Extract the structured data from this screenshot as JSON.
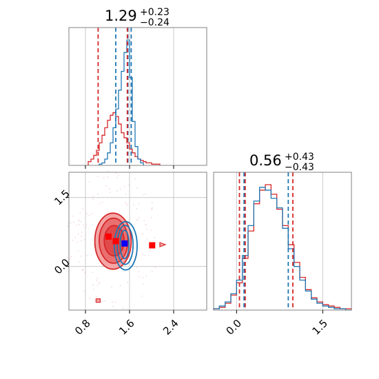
{
  "chart_data": {
    "type": "corner",
    "params": [
      {
        "median": 1.29,
        "plus": "+0.23",
        "minus": "−0.24",
        "title_main": "1.29"
      },
      {
        "median": 0.56,
        "plus": "+0.43",
        "minus": "−0.43",
        "title_main": "0.56"
      }
    ],
    "colors": {
      "blue": "#1f77b4",
      "red": "#d62728",
      "red_fill_outer": "#f4a6a6",
      "red_fill_inner": "#e04a4a"
    },
    "panel_0": {
      "xlim": [
        0.5,
        3.0
      ],
      "xticks": [
        0.8,
        1.6,
        2.4
      ],
      "xtick_labels": [
        "0.8",
        "1.6",
        "2.4"
      ],
      "quantiles_blue": [
        1.35,
        1.57,
        1.63
      ],
      "quantiles_red": [
        1.03,
        1.56
      ],
      "hist_blue": {
        "edges": [
          1.05,
          1.1,
          1.15,
          1.2,
          1.25,
          1.3,
          1.35,
          1.4,
          1.45,
          1.5,
          1.55,
          1.6,
          1.65,
          1.7,
          1.75,
          1.8,
          1.85
        ],
        "counts": [
          0.01,
          0.02,
          0.05,
          0.1,
          0.18,
          0.3,
          0.45,
          0.6,
          0.75,
          0.9,
          1.0,
          0.7,
          0.35,
          0.15,
          0.05,
          0.02
        ]
      },
      "hist_red": {
        "edges": [
          0.85,
          0.9,
          0.95,
          1.0,
          1.05,
          1.1,
          1.15,
          1.2,
          1.25,
          1.3,
          1.35,
          1.4,
          1.45,
          1.5,
          1.55,
          1.6,
          1.65,
          1.7,
          1.75,
          1.8,
          1.85,
          1.9,
          1.95,
          2.0,
          2.05,
          2.1,
          2.15
        ],
        "counts": [
          0.03,
          0.05,
          0.08,
          0.12,
          0.18,
          0.24,
          0.3,
          0.36,
          0.4,
          0.42,
          0.39,
          0.33,
          0.26,
          0.22,
          0.18,
          0.13,
          0.1,
          0.07,
          0.05,
          0.04,
          0.03,
          0.02,
          0.02,
          0.01,
          0.01,
          0.01
        ]
      }
    },
    "panel_1": {
      "xlim": [
        -0.4,
        2.0
      ],
      "xticks": [
        0.0,
        1.5
      ],
      "xtick_labels": [
        "0.0",
        "1.5"
      ],
      "quantiles_blue": [
        0.13,
        0.9
      ],
      "quantiles_red": [
        0.05,
        0.15,
        0.98
      ],
      "hist_blue": {
        "edges": [
          -0.4,
          -0.3,
          -0.2,
          -0.1,
          0.0,
          0.1,
          0.2,
          0.3,
          0.4,
          0.5,
          0.6,
          0.7,
          0.8,
          0.9,
          1.0,
          1.1,
          1.2,
          1.3,
          1.4,
          1.5,
          1.6,
          1.7,
          1.8,
          1.9,
          2.0
        ],
        "counts": [
          0.01,
          0.03,
          0.06,
          0.12,
          0.22,
          0.4,
          0.62,
          0.8,
          0.9,
          0.88,
          0.82,
          0.75,
          0.6,
          0.45,
          0.32,
          0.22,
          0.14,
          0.08,
          0.05,
          0.03,
          0.02,
          0.01,
          0.01,
          0.0
        ]
      },
      "hist_red": {
        "edges": [
          -0.4,
          -0.3,
          -0.2,
          -0.1,
          0.0,
          0.1,
          0.2,
          0.3,
          0.4,
          0.5,
          0.6,
          0.7,
          0.8,
          0.9,
          1.0,
          1.1,
          1.2,
          1.3,
          1.4,
          1.5,
          1.6,
          1.7,
          1.8,
          1.9,
          2.0
        ],
        "counts": [
          0.01,
          0.02,
          0.05,
          0.11,
          0.2,
          0.38,
          0.58,
          0.78,
          0.88,
          0.92,
          0.85,
          0.74,
          0.62,
          0.48,
          0.35,
          0.24,
          0.15,
          0.09,
          0.06,
          0.04,
          0.03,
          0.02,
          0.01,
          0.01
        ]
      }
    },
    "panel_2d": {
      "xlim": [
        0.5,
        3.0
      ],
      "ylim": [
        -0.95,
        2.05
      ],
      "xticks": [
        0.8,
        1.6,
        2.4
      ],
      "xtick_labels": [
        "0.8",
        "1.6",
        "2.4"
      ],
      "yticks": [
        0.0,
        1.5
      ],
      "ytick_labels": [
        "0.0",
        "1.5"
      ],
      "red_markers": [
        [
          1.22,
          0.65
        ],
        [
          1.35,
          0.55
        ],
        [
          2.01,
          0.46
        ]
      ],
      "blue_marker": [
        1.51,
        0.5
      ],
      "red_contours": [
        {
          "cx": 1.3,
          "cy": 0.55,
          "rx": 0.66,
          "ry": 1.22,
          "level": "outer"
        },
        {
          "cx": 1.31,
          "cy": 0.56,
          "rx": 0.52,
          "ry": 0.98,
          "level": "mid"
        },
        {
          "cx": 1.32,
          "cy": 0.56,
          "rx": 0.36,
          "ry": 0.66,
          "level": "inner"
        }
      ],
      "blue_contours": [
        {
          "cx": 1.53,
          "cy": 0.45,
          "rx": 0.26,
          "ry": 1.05
        },
        {
          "cx": 1.52,
          "cy": 0.47,
          "rx": 0.18,
          "ry": 0.85
        },
        {
          "cx": 1.51,
          "cy": 0.48,
          "rx": 0.1,
          "ry": 0.62
        }
      ]
    }
  }
}
